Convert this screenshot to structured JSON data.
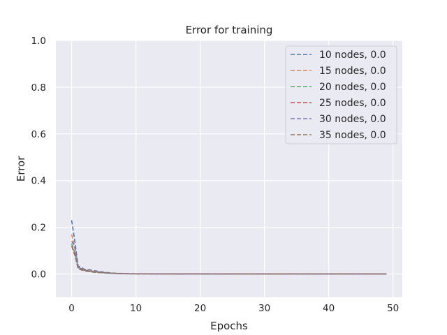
{
  "chart_data": {
    "type": "line",
    "title": "Error for training",
    "xlabel": "Epochs",
    "ylabel": "Error",
    "xlim": [
      -2.45,
      51.45
    ],
    "ylim": [
      -0.1,
      1.0
    ],
    "xticks": [
      "0",
      "10",
      "20",
      "30",
      "40",
      "50"
    ],
    "yticks": [
      "0.0",
      "0.2",
      "0.4",
      "0.6",
      "0.8",
      "1.0"
    ],
    "grid": true,
    "legend_position": "top-right",
    "line_style": "dashed",
    "x_points": [
      0,
      0.5,
      1,
      2,
      3,
      4,
      5,
      6,
      7,
      8,
      9,
      10,
      15,
      20,
      25,
      30,
      35,
      40,
      45,
      49
    ],
    "series": [
      {
        "name": "10 nodes, 0.0",
        "color": "#4c72b0",
        "values": [
          0.23,
          0.14,
          0.035,
          0.02,
          0.017,
          0.012,
          0.008,
          0.005,
          0.003,
          0.002,
          0.001,
          0.001,
          0.0005,
          0.0003,
          0.0002,
          0.0001,
          0.0001,
          0.0001,
          0.0001,
          0.0001
        ]
      },
      {
        "name": "15 nodes, 0.0",
        "color": "#dd8452",
        "values": [
          0.17,
          0.11,
          0.03,
          0.018,
          0.014,
          0.01,
          0.006,
          0.004,
          0.002,
          0.0015,
          0.001,
          0.0008,
          0.0004,
          0.0002,
          0.0001,
          0.0001,
          0.0001,
          0.0001,
          0.0001,
          0.0001
        ]
      },
      {
        "name": "20 nodes, 0.0",
        "color": "#55a868",
        "values": [
          0.13,
          0.09,
          0.028,
          0.017,
          0.012,
          0.009,
          0.006,
          0.004,
          0.002,
          0.0015,
          0.001,
          0.0008,
          0.0004,
          0.0002,
          0.0001,
          0.0001,
          0.0001,
          0.0001,
          0.0001,
          0.0001
        ]
      },
      {
        "name": "25 nodes, 0.0",
        "color": "#c44e52",
        "values": [
          0.12,
          0.08,
          0.025,
          0.015,
          0.01,
          0.007,
          0.005,
          0.003,
          0.002,
          0.001,
          0.0008,
          0.0006,
          0.0003,
          0.0002,
          0.0001,
          0.0001,
          0.0001,
          0.0001,
          0.0001,
          0.0001
        ]
      },
      {
        "name": "30 nodes, 0.0",
        "color": "#8172b3",
        "values": [
          0.14,
          0.12,
          0.028,
          0.016,
          0.011,
          0.008,
          0.005,
          0.003,
          0.002,
          0.001,
          0.0008,
          0.0006,
          0.0003,
          0.0002,
          0.0001,
          0.0001,
          0.0001,
          0.0001,
          0.0001,
          0.0001
        ]
      },
      {
        "name": "35 nodes, 0.0",
        "color": "#937860",
        "values": [
          0.12,
          0.09,
          0.022,
          0.013,
          0.009,
          0.006,
          0.004,
          0.003,
          0.0015,
          0.001,
          0.0007,
          0.0005,
          0.0003,
          0.0002,
          0.0001,
          0.0001,
          0.0001,
          0.0001,
          0.0001,
          0.0001
        ]
      }
    ]
  },
  "colors": {
    "plot_background": "#eaeaf2",
    "grid": "#ffffff",
    "legend_background": "#eaeaf2",
    "legend_border": "#cccccc"
  }
}
